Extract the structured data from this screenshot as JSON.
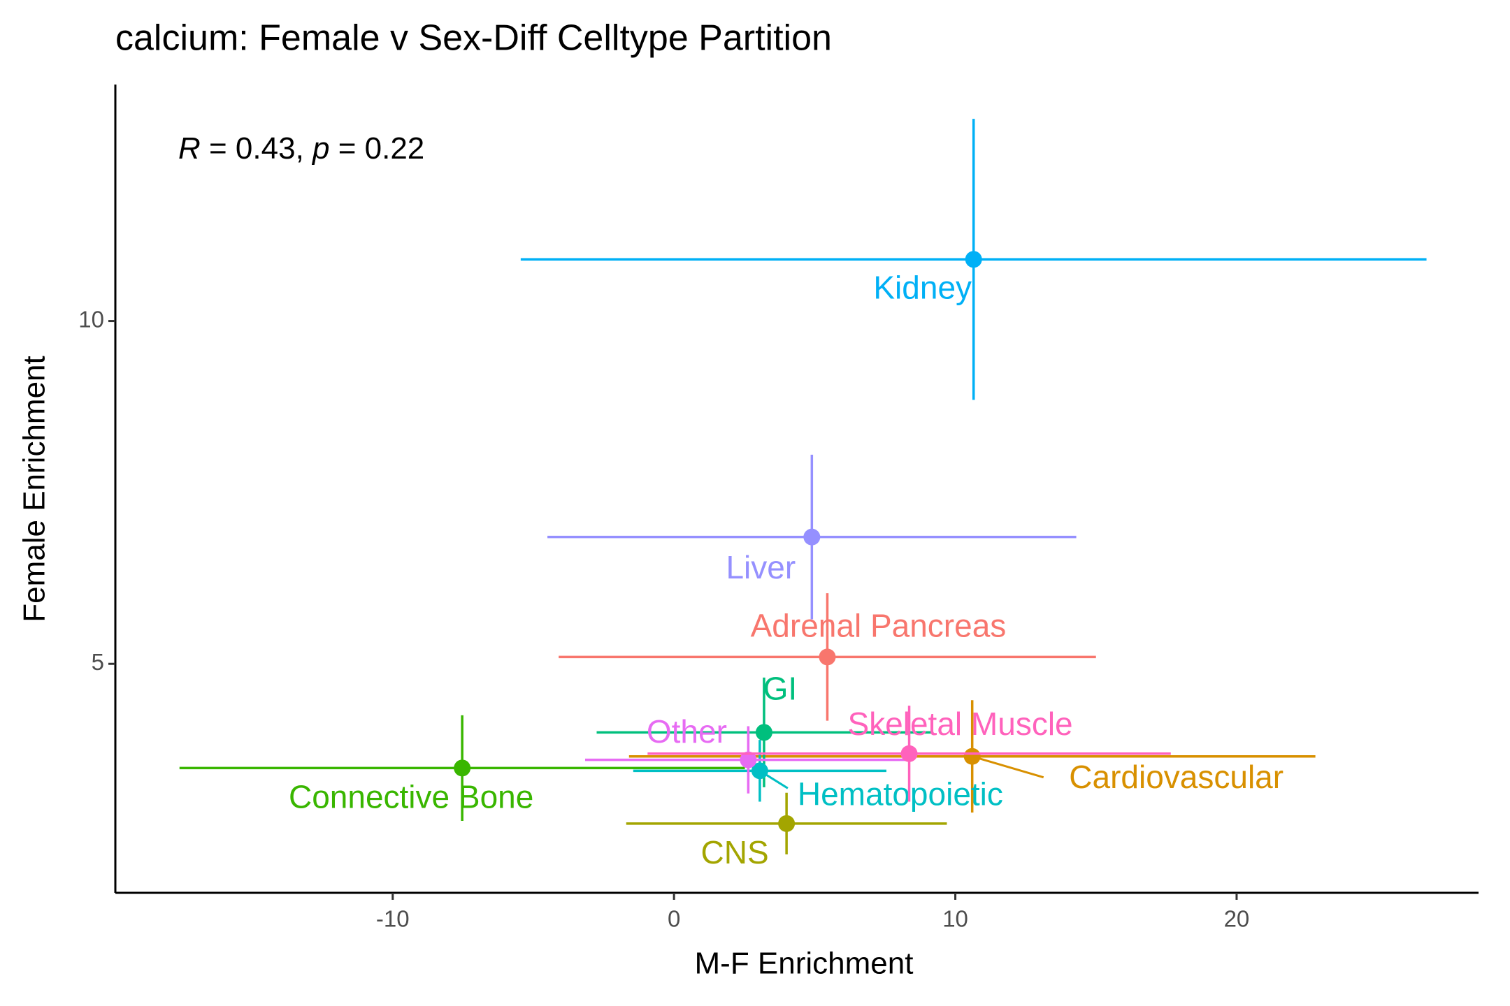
{
  "chart_data": {
    "type": "scatter",
    "title": "calcium: Female v Sex-Diff Celltype Partition",
    "x_label": "M-F Enrichment",
    "y_label": "Female Enrichment",
    "annotation": [
      "R",
      " = 0.43, ",
      "p",
      " = 0.22"
    ],
    "xlim": [
      -19.86,
      28.6
    ],
    "ylim": [
      1.66,
      13.45
    ],
    "xticks": [
      -10,
      0,
      10,
      20
    ],
    "yticks": [
      5,
      10
    ],
    "series": [
      {
        "name": "Adrenal Pancreas",
        "color": "#F8766D",
        "x": [
          5.45
        ],
        "values": [
          5.1
        ],
        "xerr": [
          9.55
        ],
        "yerr": [
          0.93
        ]
      },
      {
        "name": "Cardiovascular",
        "color": "#D89000",
        "x": [
          10.6
        ],
        "values": [
          3.65
        ],
        "xerr": [
          12.2
        ],
        "yerr": [
          0.82
        ]
      },
      {
        "name": "CNS",
        "color": "#A3A500",
        "x": [
          4.0
        ],
        "values": [
          2.67
        ],
        "xerr": [
          5.7
        ],
        "yerr": [
          0.45
        ]
      },
      {
        "name": "Connective Bone",
        "color": "#39B600",
        "x": [
          -7.53
        ],
        "values": [
          3.48
        ],
        "xerr": [
          10.05
        ],
        "yerr": [
          0.77
        ]
      },
      {
        "name": "GI",
        "color": "#00BF7D",
        "x": [
          3.2
        ],
        "values": [
          4.0
        ],
        "xerr": [
          5.95
        ],
        "yerr": [
          0.8
        ]
      },
      {
        "name": "Hematopoietic",
        "color": "#00BFC4",
        "x": [
          3.05
        ],
        "values": [
          3.44
        ],
        "xerr": [
          4.5
        ],
        "yerr": [
          0.45
        ]
      },
      {
        "name": "Kidney",
        "color": "#00B0F6",
        "x": [
          10.65
        ],
        "values": [
          10.9
        ],
        "xerr": [
          16.1
        ],
        "yerr": [
          2.05
        ]
      },
      {
        "name": "Liver",
        "color": "#9590FF",
        "x": [
          4.9
        ],
        "values": [
          6.85
        ],
        "xerr": [
          9.4
        ],
        "yerr": [
          1.2
        ]
      },
      {
        "name": "Other",
        "color": "#E76BF3",
        "x": [
          2.64
        ],
        "values": [
          3.6
        ],
        "xerr": [
          5.8
        ],
        "yerr": [
          0.49
        ]
      },
      {
        "name": "Skeletal Muscle",
        "color": "#FF62BC",
        "x": [
          8.36
        ],
        "values": [
          3.69
        ],
        "xerr": [
          9.3
        ],
        "yerr": [
          0.7
        ]
      }
    ]
  }
}
